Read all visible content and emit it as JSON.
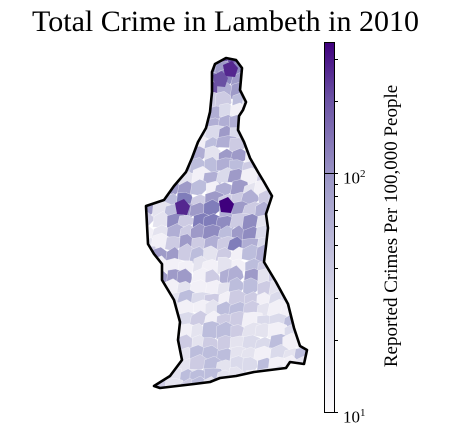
{
  "title": "Total Crime in Lambeth in 2010",
  "colorbar": {
    "label": "Reported Crimes Per 100,000 People",
    "scale": "log",
    "range": [
      10,
      350
    ],
    "colormap": "Purples",
    "ticks": [
      {
        "base": "10",
        "exp": "1",
        "value": 10
      },
      {
        "base": "10",
        "exp": "2",
        "value": 100
      }
    ],
    "colors": {
      "low": "#fcfbfd",
      "mid": "#9e9ac8",
      "high": "#3f007d"
    }
  },
  "map": {
    "region": "Lambeth",
    "outline_color": "#000000"
  }
}
